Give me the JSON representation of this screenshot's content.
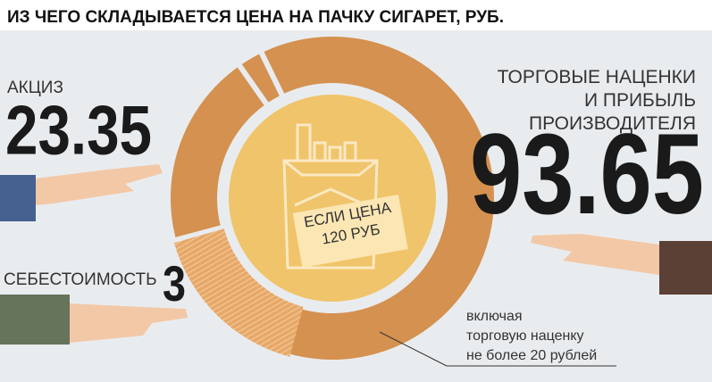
{
  "chart_data": {
    "type": "pie",
    "title": "ИЗ ЧЕГО СКЛАДЫВАЕТСЯ ЦЕНА НА ПАЧКУ СИГАРЕТ, РУБ.",
    "center_label": "ЕСЛИ ЦЕНА\n120 РУБ",
    "categories": [
      "АКЦИЗ",
      "СЕБЕСТОИМОСТЬ",
      "ТОРГОВЫЕ НАЦЕНКИ\nИ ПРИБЫЛЬ\nПРОИЗВОДИТЕЛЯ"
    ],
    "values": [
      23.35,
      3,
      93.65
    ],
    "colors": [
      "#d4914f",
      "#d4914f",
      "#d4914f"
    ],
    "highlight": {
      "value": 20,
      "label": "включая\nторговую наценку\nне более 20 рублей"
    }
  }
}
